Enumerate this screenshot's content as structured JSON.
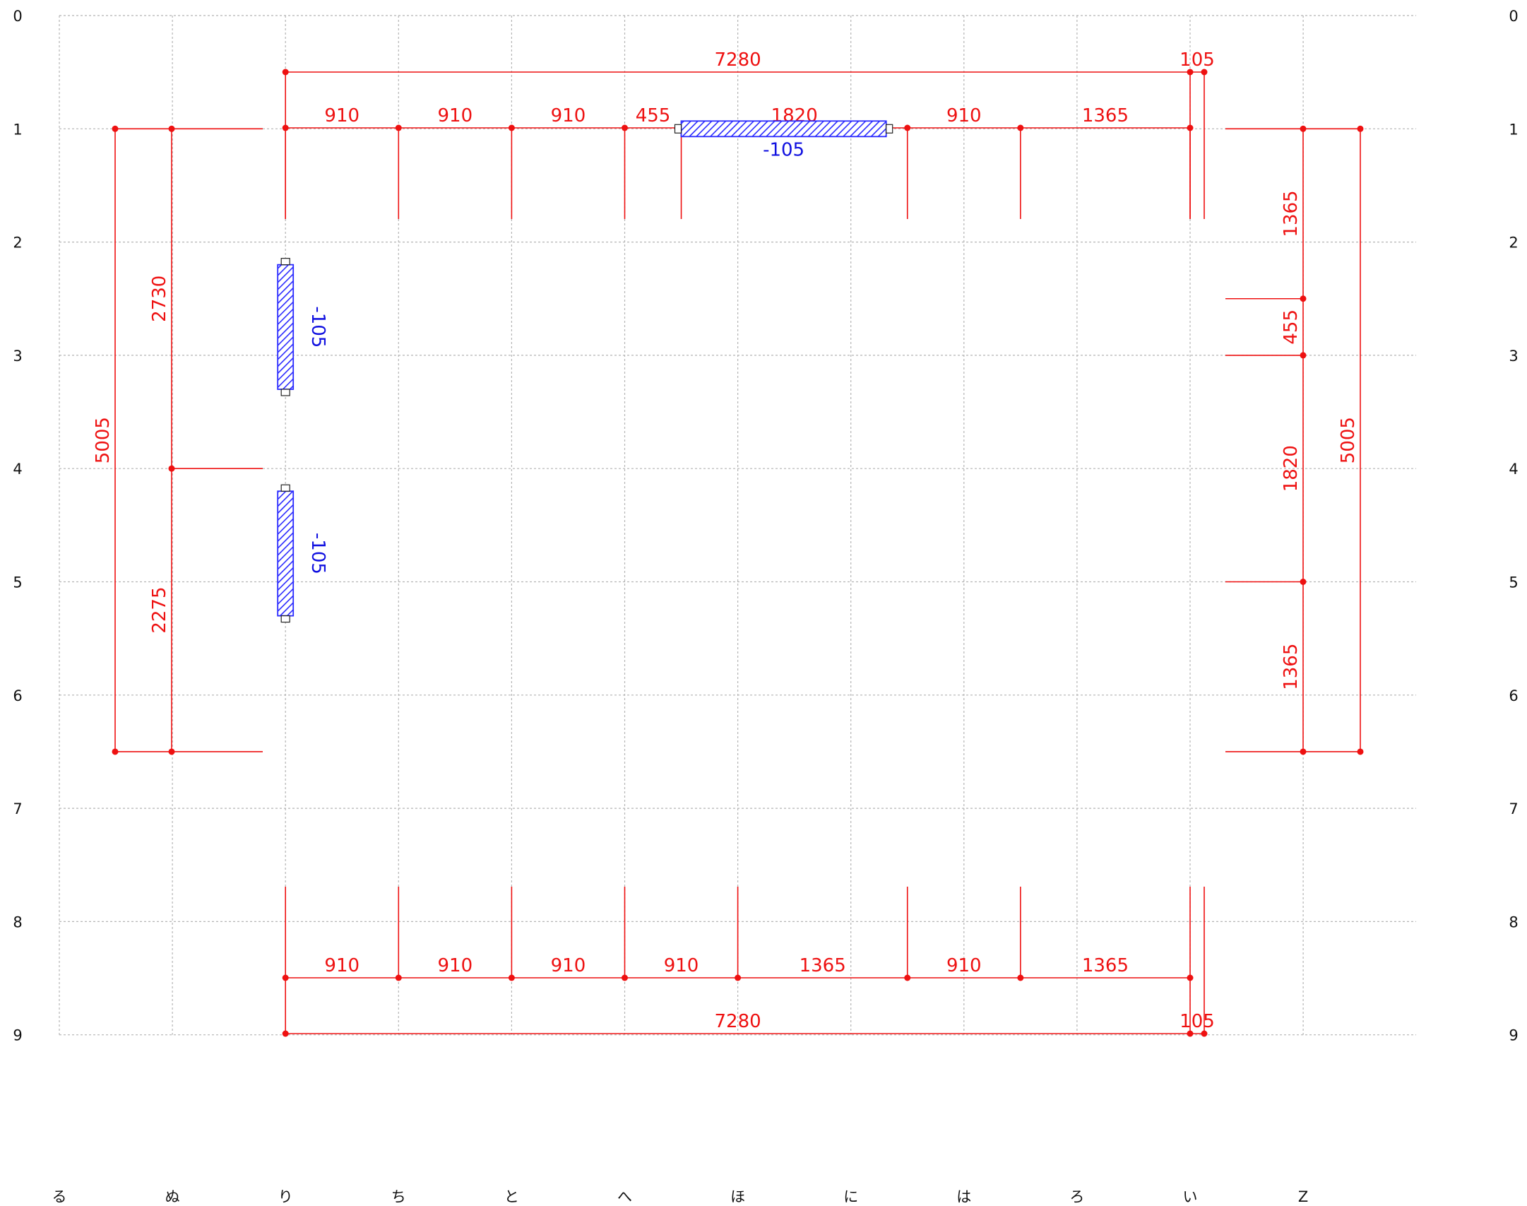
{
  "colors": {
    "grid": "#b4b4b4",
    "dimension": "#ee1111",
    "wall_fill": "#2a2aff",
    "wall_label": "#1010e0",
    "text": "#111111",
    "background": "#ffffff"
  },
  "row_labels": [
    "0",
    "1",
    "2",
    "3",
    "4",
    "5",
    "6",
    "7",
    "8",
    "9"
  ],
  "column_labels": [
    "る",
    "ぬ",
    "り",
    "ち",
    "と",
    "へ",
    "ほ",
    "に",
    "は",
    "ろ",
    "い",
    "Z"
  ],
  "dimensions": {
    "top_total": [
      "7280",
      "105"
    ],
    "top_segments": [
      "910",
      "910",
      "910",
      "455",
      "1820",
      "910",
      "1365"
    ],
    "bottom_segments": [
      "910",
      "910",
      "910",
      "910",
      "1365",
      "910",
      "1365"
    ],
    "bottom_total": [
      "7280",
      "105"
    ],
    "left_segments": [
      "2730",
      "2275"
    ],
    "left_total": [
      "5005"
    ],
    "right_segments": [
      "1365",
      "455",
      "1820",
      "1365"
    ],
    "right_total": [
      "5005"
    ]
  },
  "walls": [
    {
      "label": "-105",
      "orientation": "horizontal",
      "grid_row": 1,
      "from_column": "へ",
      "to_column": "に"
    },
    {
      "label": "-105",
      "orientation": "vertical",
      "grid_column": "り",
      "from_row": 2.2,
      "to_row": 3.3
    },
    {
      "label": "-105",
      "orientation": "vertical",
      "grid_column": "り",
      "from_row": 4.2,
      "to_row": 5.3
    }
  ]
}
